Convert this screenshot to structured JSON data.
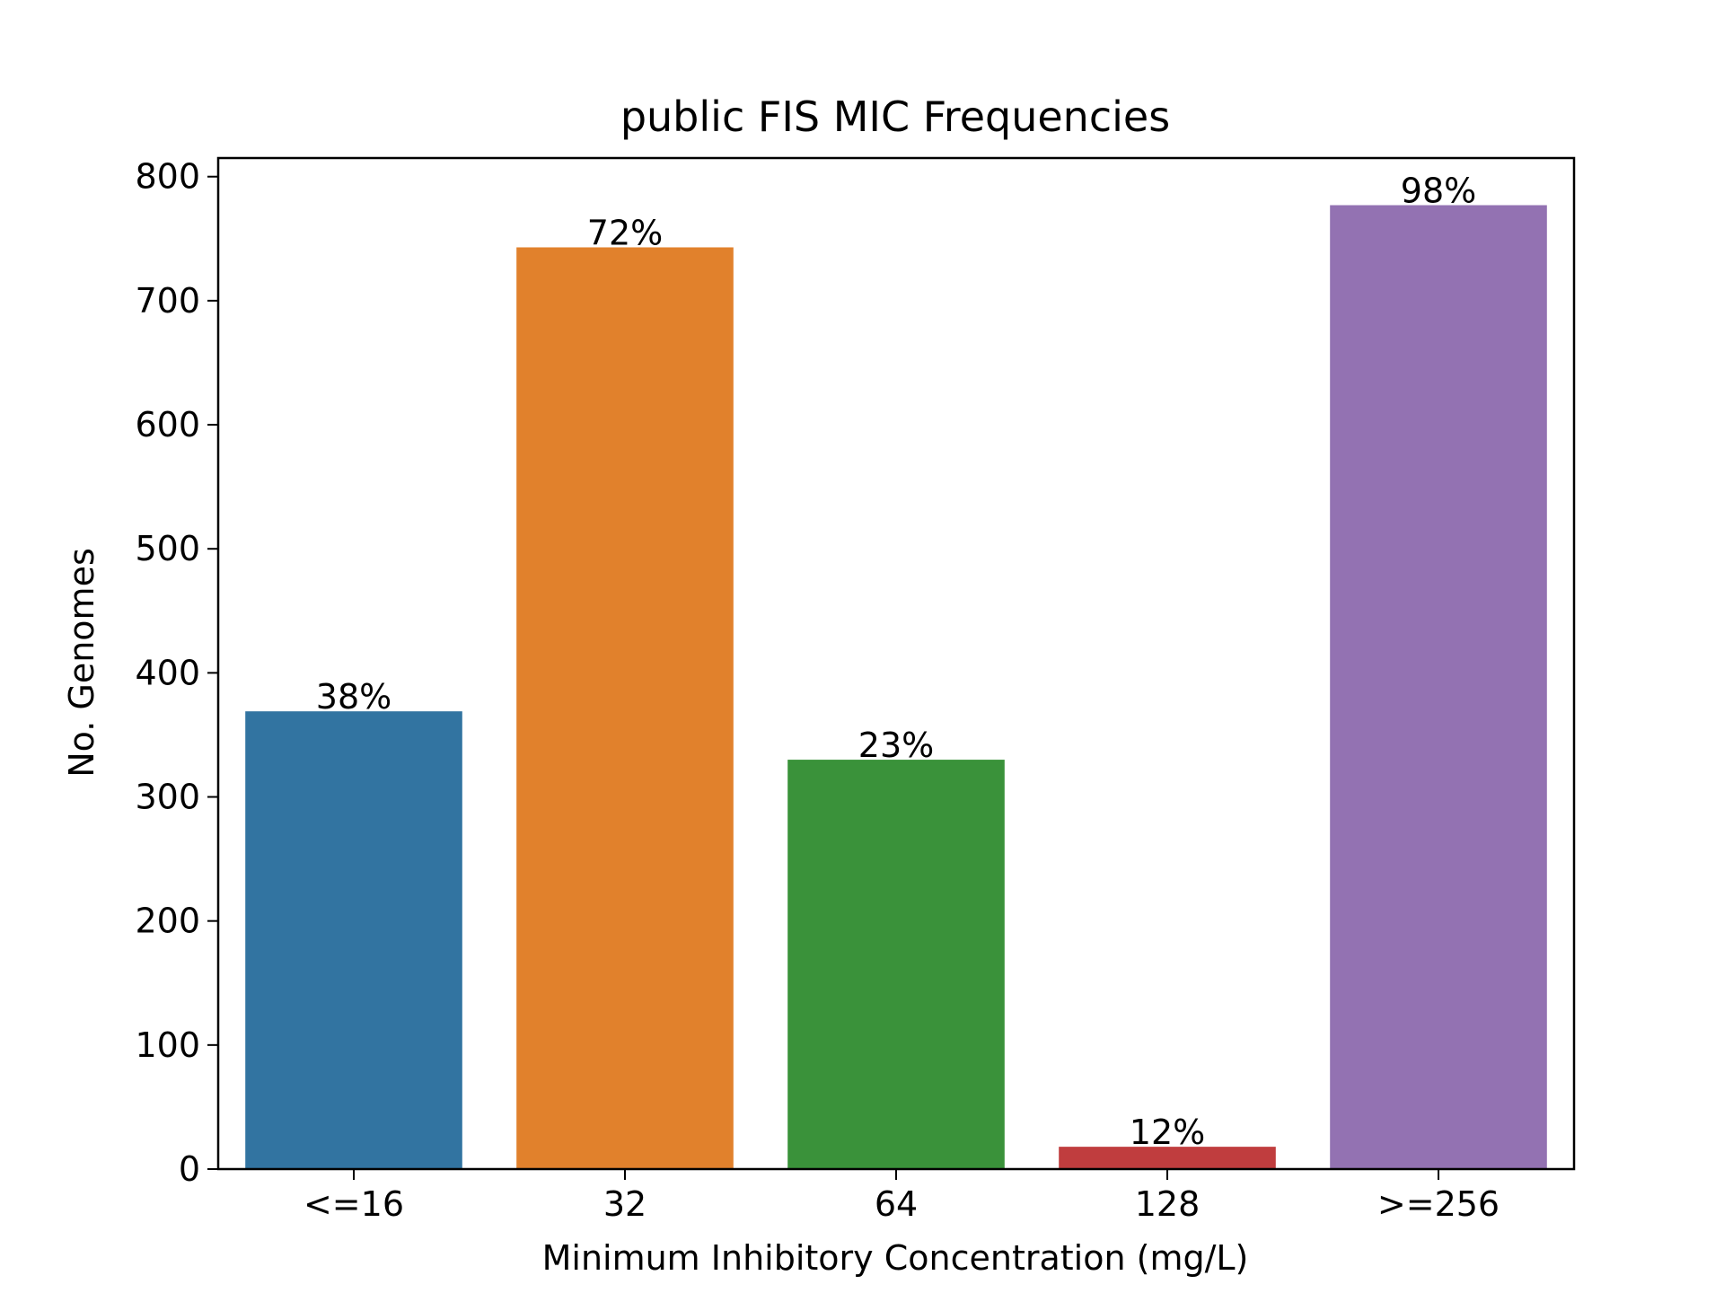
{
  "chart_data": {
    "type": "bar",
    "title": "public FIS MIC Frequencies",
    "xlabel": "Minimum Inhibitory Concentration (mg/L)",
    "ylabel": "No. Genomes",
    "categories": [
      "<=16",
      "32",
      "64",
      "128",
      ">=256"
    ],
    "values": [
      369,
      743,
      330,
      18,
      777
    ],
    "data_labels": [
      "38%",
      "72%",
      "23%",
      "12%",
      "98%"
    ],
    "colors": [
      "#3274a1",
      "#e1812c",
      "#3a923a",
      "#c03d3e",
      "#9372b2"
    ],
    "ylim": [
      0,
      815
    ],
    "yticks": [
      0,
      100,
      200,
      300,
      400,
      500,
      600,
      700,
      800
    ],
    "grid": false,
    "legend": false
  }
}
